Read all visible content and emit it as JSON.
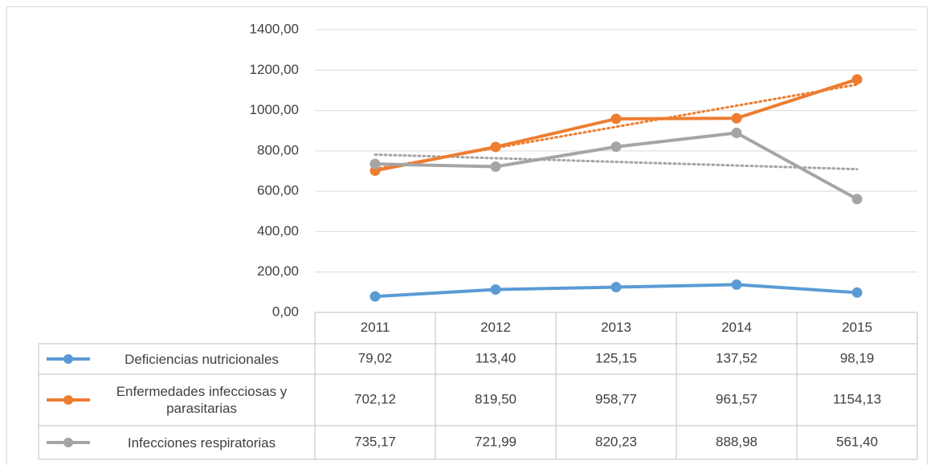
{
  "chart_data": {
    "type": "line",
    "categories": [
      "2011",
      "2012",
      "2013",
      "2014",
      "2015"
    ],
    "ylim": [
      0,
      1400
    ],
    "yticks": [
      {
        "value": 0,
        "label": "0,00"
      },
      {
        "value": 200,
        "label": "200,00"
      },
      {
        "value": 400,
        "label": "400,00"
      },
      {
        "value": 600,
        "label": "600,00"
      },
      {
        "value": 800,
        "label": "800,00"
      },
      {
        "value": 1000,
        "label": "1000,00"
      },
      {
        "value": 1200,
        "label": "1200,00"
      },
      {
        "value": 1400,
        "label": "1400,00"
      }
    ],
    "grid": true,
    "series": [
      {
        "name": "Deficiencias nutricionales",
        "color": "#5b9bd5",
        "values": [
          79.02,
          113.4,
          125.15,
          137.52,
          98.19
        ],
        "value_labels": [
          "79,02",
          "113,40",
          "125,15",
          "137,52",
          "98,19"
        ],
        "trendline": false
      },
      {
        "name": "Enfermedades infecciosas y parasitarias",
        "color": "#ed7d31",
        "values": [
          702.12,
          819.5,
          958.77,
          961.57,
          1154.13
        ],
        "value_labels": [
          "702,12",
          "819,50",
          "958,77",
          "961,57",
          "1154,13"
        ],
        "trendline": true
      },
      {
        "name": "Infecciones respiratorias",
        "color": "#a5a5a5",
        "values": [
          735.17,
          721.99,
          820.23,
          888.98,
          561.4
        ],
        "value_labels": [
          "735,17",
          "721,99",
          "820,23",
          "888,98",
          "561,40"
        ],
        "trendline": true
      }
    ]
  }
}
